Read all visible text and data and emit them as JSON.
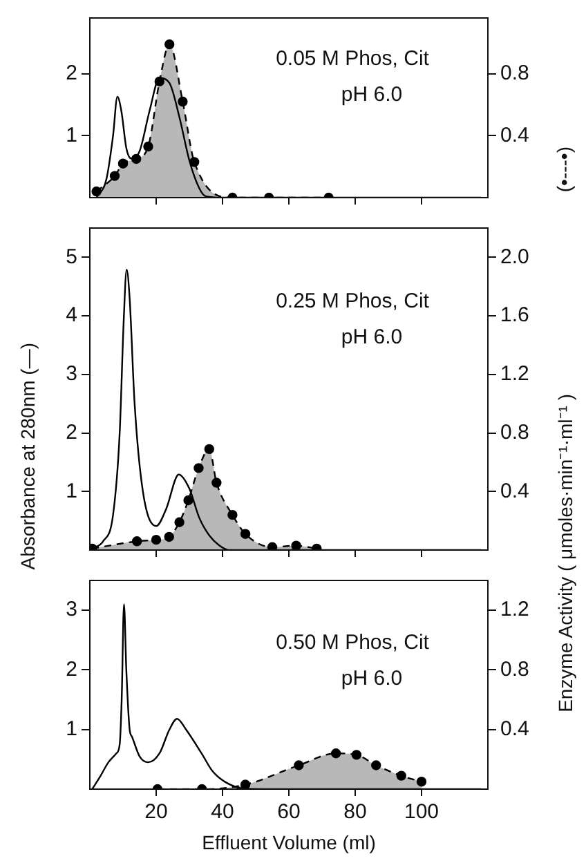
{
  "chart_data": [
    {
      "type": "line",
      "annotations": [
        "0.05 M Phos, Cit",
        "pH 6.0"
      ],
      "y2label": "(•---•)",
      "tick_labels": "y",
      "xlim": [
        0,
        120
      ],
      "xticks": [
        20,
        40,
        60,
        80,
        100
      ],
      "ylim": [
        0,
        2.9
      ],
      "yticks": [
        1,
        2
      ],
      "y2lim": [
        0,
        1.16
      ],
      "y2ticks": [
        0.4,
        0.8
      ],
      "series": [
        {
          "type": "line",
          "axis": "y",
          "color": "#000000",
          "marker": "none",
          "line_style": "solid",
          "x": [
            2,
            5,
            7,
            8.3,
            9.5,
            11,
            12.5,
            15,
            18,
            21,
            24,
            27,
            30,
            33,
            35,
            40,
            50,
            70,
            90,
            118
          ],
          "values": [
            0,
            0.3,
            1.0,
            1.63,
            1.4,
            0.8,
            0.63,
            0.75,
            1.4,
            1.93,
            1.85,
            1.3,
            0.6,
            0.15,
            0.02,
            0,
            0,
            0,
            0,
            0
          ]
        },
        {
          "type": "area",
          "axis": "y2",
          "color": "#000000",
          "marker": "circle",
          "line_style": "dashed",
          "x": [
            2,
            7.5,
            10,
            14,
            17.6,
            21,
            24,
            28,
            31.5,
            43,
            54,
            72
          ],
          "values": [
            0.04,
            0.14,
            0.22,
            0.25,
            0.33,
            0.75,
            0.99,
            0.62,
            0.23,
            0,
            0,
            0
          ]
        }
      ]
    },
    {
      "type": "line",
      "annotations": [
        "0.25 M Phos, Cit",
        "pH 6.0"
      ],
      "ylabel": "Absorbance at 280nm   (—)",
      "y2label": "Enzyme Activity ( μmoles·min⁻¹·ml⁻¹ )",
      "tick_labels": "y",
      "xlim": [
        0,
        120
      ],
      "xticks": [
        20,
        40,
        60,
        80,
        100
      ],
      "ylim": [
        0,
        5.5
      ],
      "yticks": [
        1,
        2,
        3,
        4,
        5
      ],
      "y2lim": [
        0,
        2.2
      ],
      "y2ticks": [
        0.4,
        0.8,
        1.2,
        1.6,
        {
          "value": 2,
          "label": "2.0"
        }
      ],
      "series": [
        {
          "type": "line",
          "axis": "y",
          "color": "#000000",
          "marker": "none",
          "line_style": "solid",
          "x": [
            0.7,
            4,
            7,
            9,
            10.2,
            11.1,
            12,
            13.5,
            16,
            20,
            23,
            26.8,
            30,
            33,
            36,
            39,
            42,
            50,
            70,
            90,
            118
          ],
          "values": [
            0.03,
            0.15,
            0.6,
            2.0,
            3.9,
            4.79,
            4.3,
            2.5,
            1.0,
            0.41,
            0.7,
            1.29,
            1.05,
            0.55,
            0.25,
            0.08,
            0,
            0,
            0,
            0,
            0
          ]
        },
        {
          "type": "area",
          "axis": "y2",
          "color": "#000000",
          "marker": "circle",
          "line_style": "dashed",
          "x": [
            0.7,
            14.2,
            20,
            23.9,
            27,
            29.7,
            32.8,
            36,
            38.2,
            43,
            46.9,
            55,
            62.2,
            68.4
          ],
          "values": [
            0.01,
            0.06,
            0.07,
            0.09,
            0.19,
            0.34,
            0.56,
            0.69,
            0.46,
            0.24,
            0.11,
            0.02,
            0.03,
            0.01
          ]
        }
      ]
    },
    {
      "type": "line",
      "annotations": [
        "0.50 M Phos, Cit",
        "pH 6.0"
      ],
      "xlabel": "Effluent Volume (ml)",
      "xlim": [
        0,
        120
      ],
      "xticks": [
        20,
        40,
        60,
        80,
        100
      ],
      "ylim": [
        0,
        3.5
      ],
      "yticks": [
        1,
        2,
        3
      ],
      "y2lim": [
        0,
        1.4
      ],
      "y2ticks": [
        0.4,
        0.8,
        1.2
      ],
      "series": [
        {
          "type": "line",
          "axis": "y",
          "color": "#000000",
          "marker": "none",
          "line_style": "solid",
          "x": [
            0.7,
            3,
            5.6,
            8,
            9,
            9.6,
            10.3,
            11,
            12,
            12.7,
            15,
            17.6,
            21,
            24,
            26.3,
            29,
            33.8,
            37,
            40.8,
            46.5,
            60,
            80,
            100,
            118
          ],
          "values": [
            0,
            0.2,
            0.45,
            0.6,
            0.75,
            1.5,
            3.1,
            2.0,
            1.0,
            0.88,
            0.55,
            0.45,
            0.6,
            1.0,
            1.18,
            1.0,
            0.59,
            0.3,
            0.12,
            0.01,
            0,
            0,
            0,
            0
          ]
        },
        {
          "type": "area",
          "axis": "y2",
          "color": "#000000",
          "marker": "circle",
          "line_style": "dashed",
          "x": [
            20.4,
            33.8,
            46.9,
            63,
            74.2,
            80.4,
            86.3,
            93.9,
            100
          ],
          "values": [
            0,
            0,
            0.03,
            0.16,
            0.24,
            0.23,
            0.16,
            0.09,
            0.05
          ]
        }
      ]
    }
  ]
}
